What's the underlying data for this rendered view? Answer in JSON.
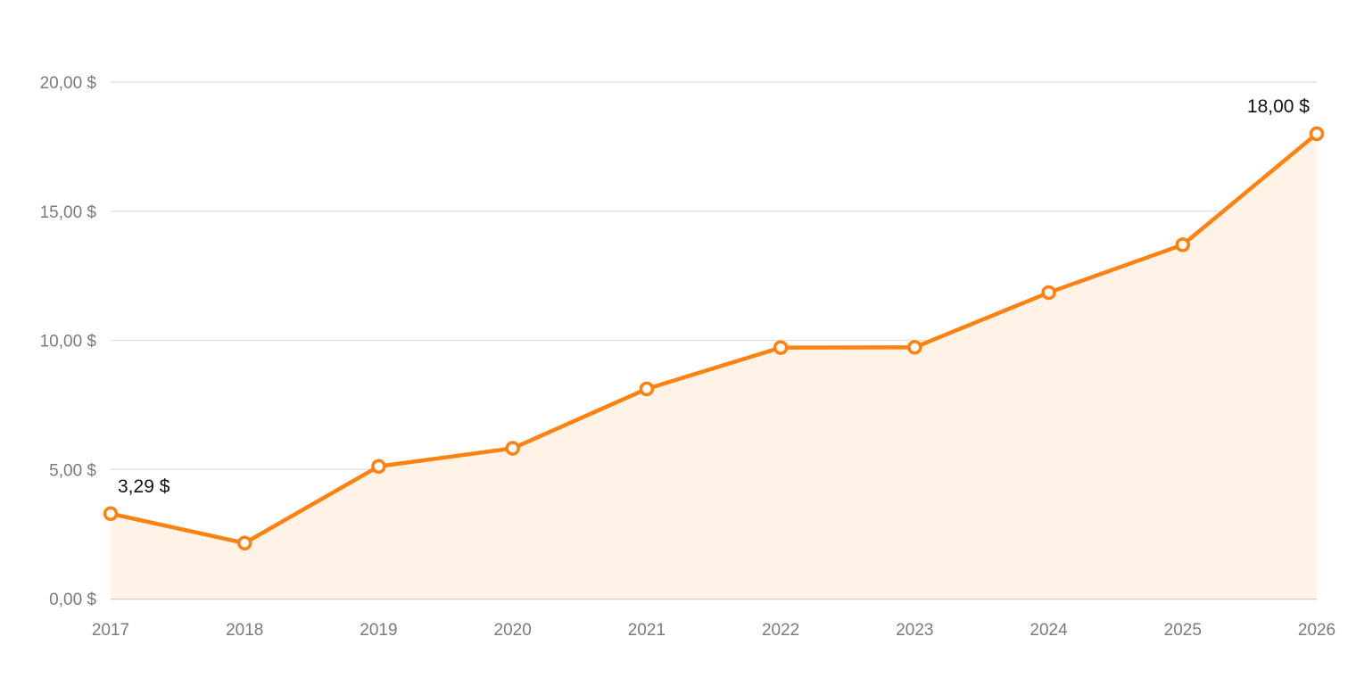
{
  "chart_data": {
    "type": "area",
    "title": "",
    "xlabel": "",
    "ylabel": "",
    "x": [
      "2017",
      "2018",
      "2019",
      "2020",
      "2021",
      "2022",
      "2023",
      "2024",
      "2025",
      "2026"
    ],
    "series": [
      {
        "values": [
          3.29,
          2.15,
          5.12,
          5.82,
          8.12,
          9.72,
          9.73,
          11.85,
          13.7,
          18.0
        ]
      }
    ],
    "ylim": [
      0,
      20
    ],
    "y_ticks": [
      {
        "value": 0,
        "label": "0,00 $"
      },
      {
        "value": 5,
        "label": "5,00 $"
      },
      {
        "value": 10,
        "label": "10,00 $"
      },
      {
        "value": 15,
        "label": "15,00 $"
      },
      {
        "value": 20,
        "label": "20,00 $"
      }
    ],
    "data_labels": [
      {
        "index": 0,
        "label": "3,29 $"
      },
      {
        "index": 9,
        "label": "18,00 $"
      }
    ],
    "grid": true,
    "legend": "none",
    "colors": {
      "line": "#ff8210",
      "area": "#fff2e6"
    }
  }
}
